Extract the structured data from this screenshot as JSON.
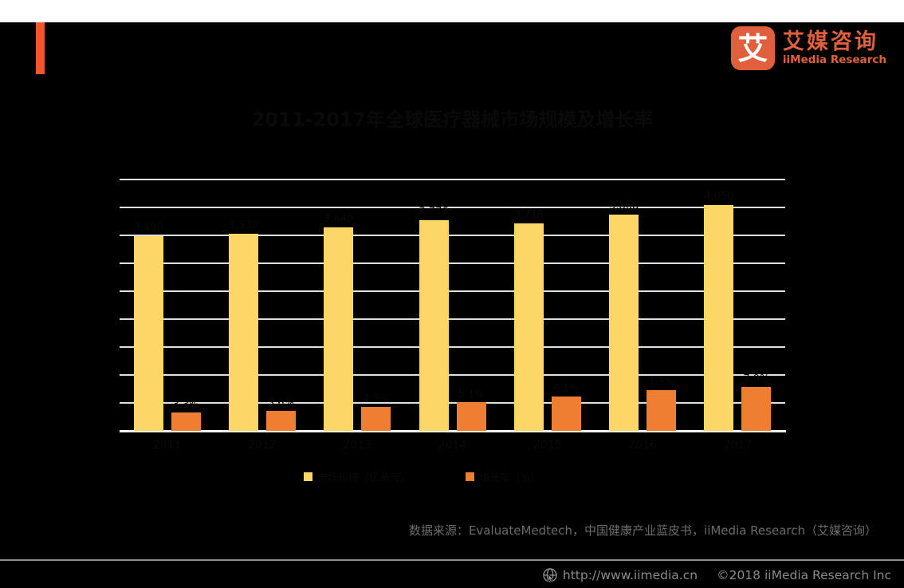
{
  "colors": {
    "background": "#000000",
    "top_strip": "#FFFFFF",
    "accent": "#F3562B",
    "logo": "#E0603E",
    "bar_yellow": "#FDD765",
    "bar_orange": "#ED7D31",
    "grid": "#DFDFDF",
    "axis": "#F0F0F0",
    "label_dark": "#0A0A0A",
    "source_text": "#6B6B6B",
    "footer_text": "#8B8B8B",
    "divider": "#8E8E8E"
  },
  "header": {
    "logo": {
      "icon_glyph": "艾",
      "name_cn": "艾媒咨询",
      "name_en": "iiMedia Research"
    }
  },
  "chart_data": {
    "type": "bar",
    "title": "2011-2017年全球医疗器械市场规模及增长率",
    "categories": [
      "2011",
      "2012",
      "2013",
      "2014",
      "2015",
      "2016",
      "2017"
    ],
    "series": [
      {
        "name": "市场规模（亿美元）",
        "color_key": "bar_yellow",
        "axis": "left",
        "values": [
          3490,
          3530,
          3640,
          3776,
          3718,
          3868,
          4050
        ],
        "labels": [
          "3,490",
          "3,530",
          "3,640",
          "3,776",
          "3,718",
          "3,868",
          "4,050"
        ]
      },
      {
        "name": "增长率（%）",
        "color_key": "bar_orange",
        "axis": "right",
        "values": [
          3.3,
          3.6,
          4.3,
          5.1,
          6.1,
          7.3,
          7.9
        ],
        "labels": [
          "3.3%",
          "3.6%",
          "4.3%",
          "5.1%",
          "6.1%",
          "7.3%",
          "7.9%"
        ]
      }
    ],
    "left_axis": {
      "min": 0,
      "max": 4500,
      "step": 500
    },
    "right_axis": {
      "min": 0,
      "max": 45,
      "step": 5
    },
    "grid": true,
    "legend_position": "bottom",
    "note": "Chart text (title, data labels, axis categories, legend labels) is rendered in near-black and is illegible against the black background; values are estimated from bar heights and gridlines."
  },
  "legend": {
    "x_positions": [
      381,
      584
    ]
  },
  "source_line": "数据来源：EvaluateMedtech，中国健康产业蓝皮书，iiMedia Research（艾媒咨询）",
  "footer": {
    "url": "http://www.iimedia.cn",
    "copyright": "©2018  iiMedia Research  Inc"
  }
}
